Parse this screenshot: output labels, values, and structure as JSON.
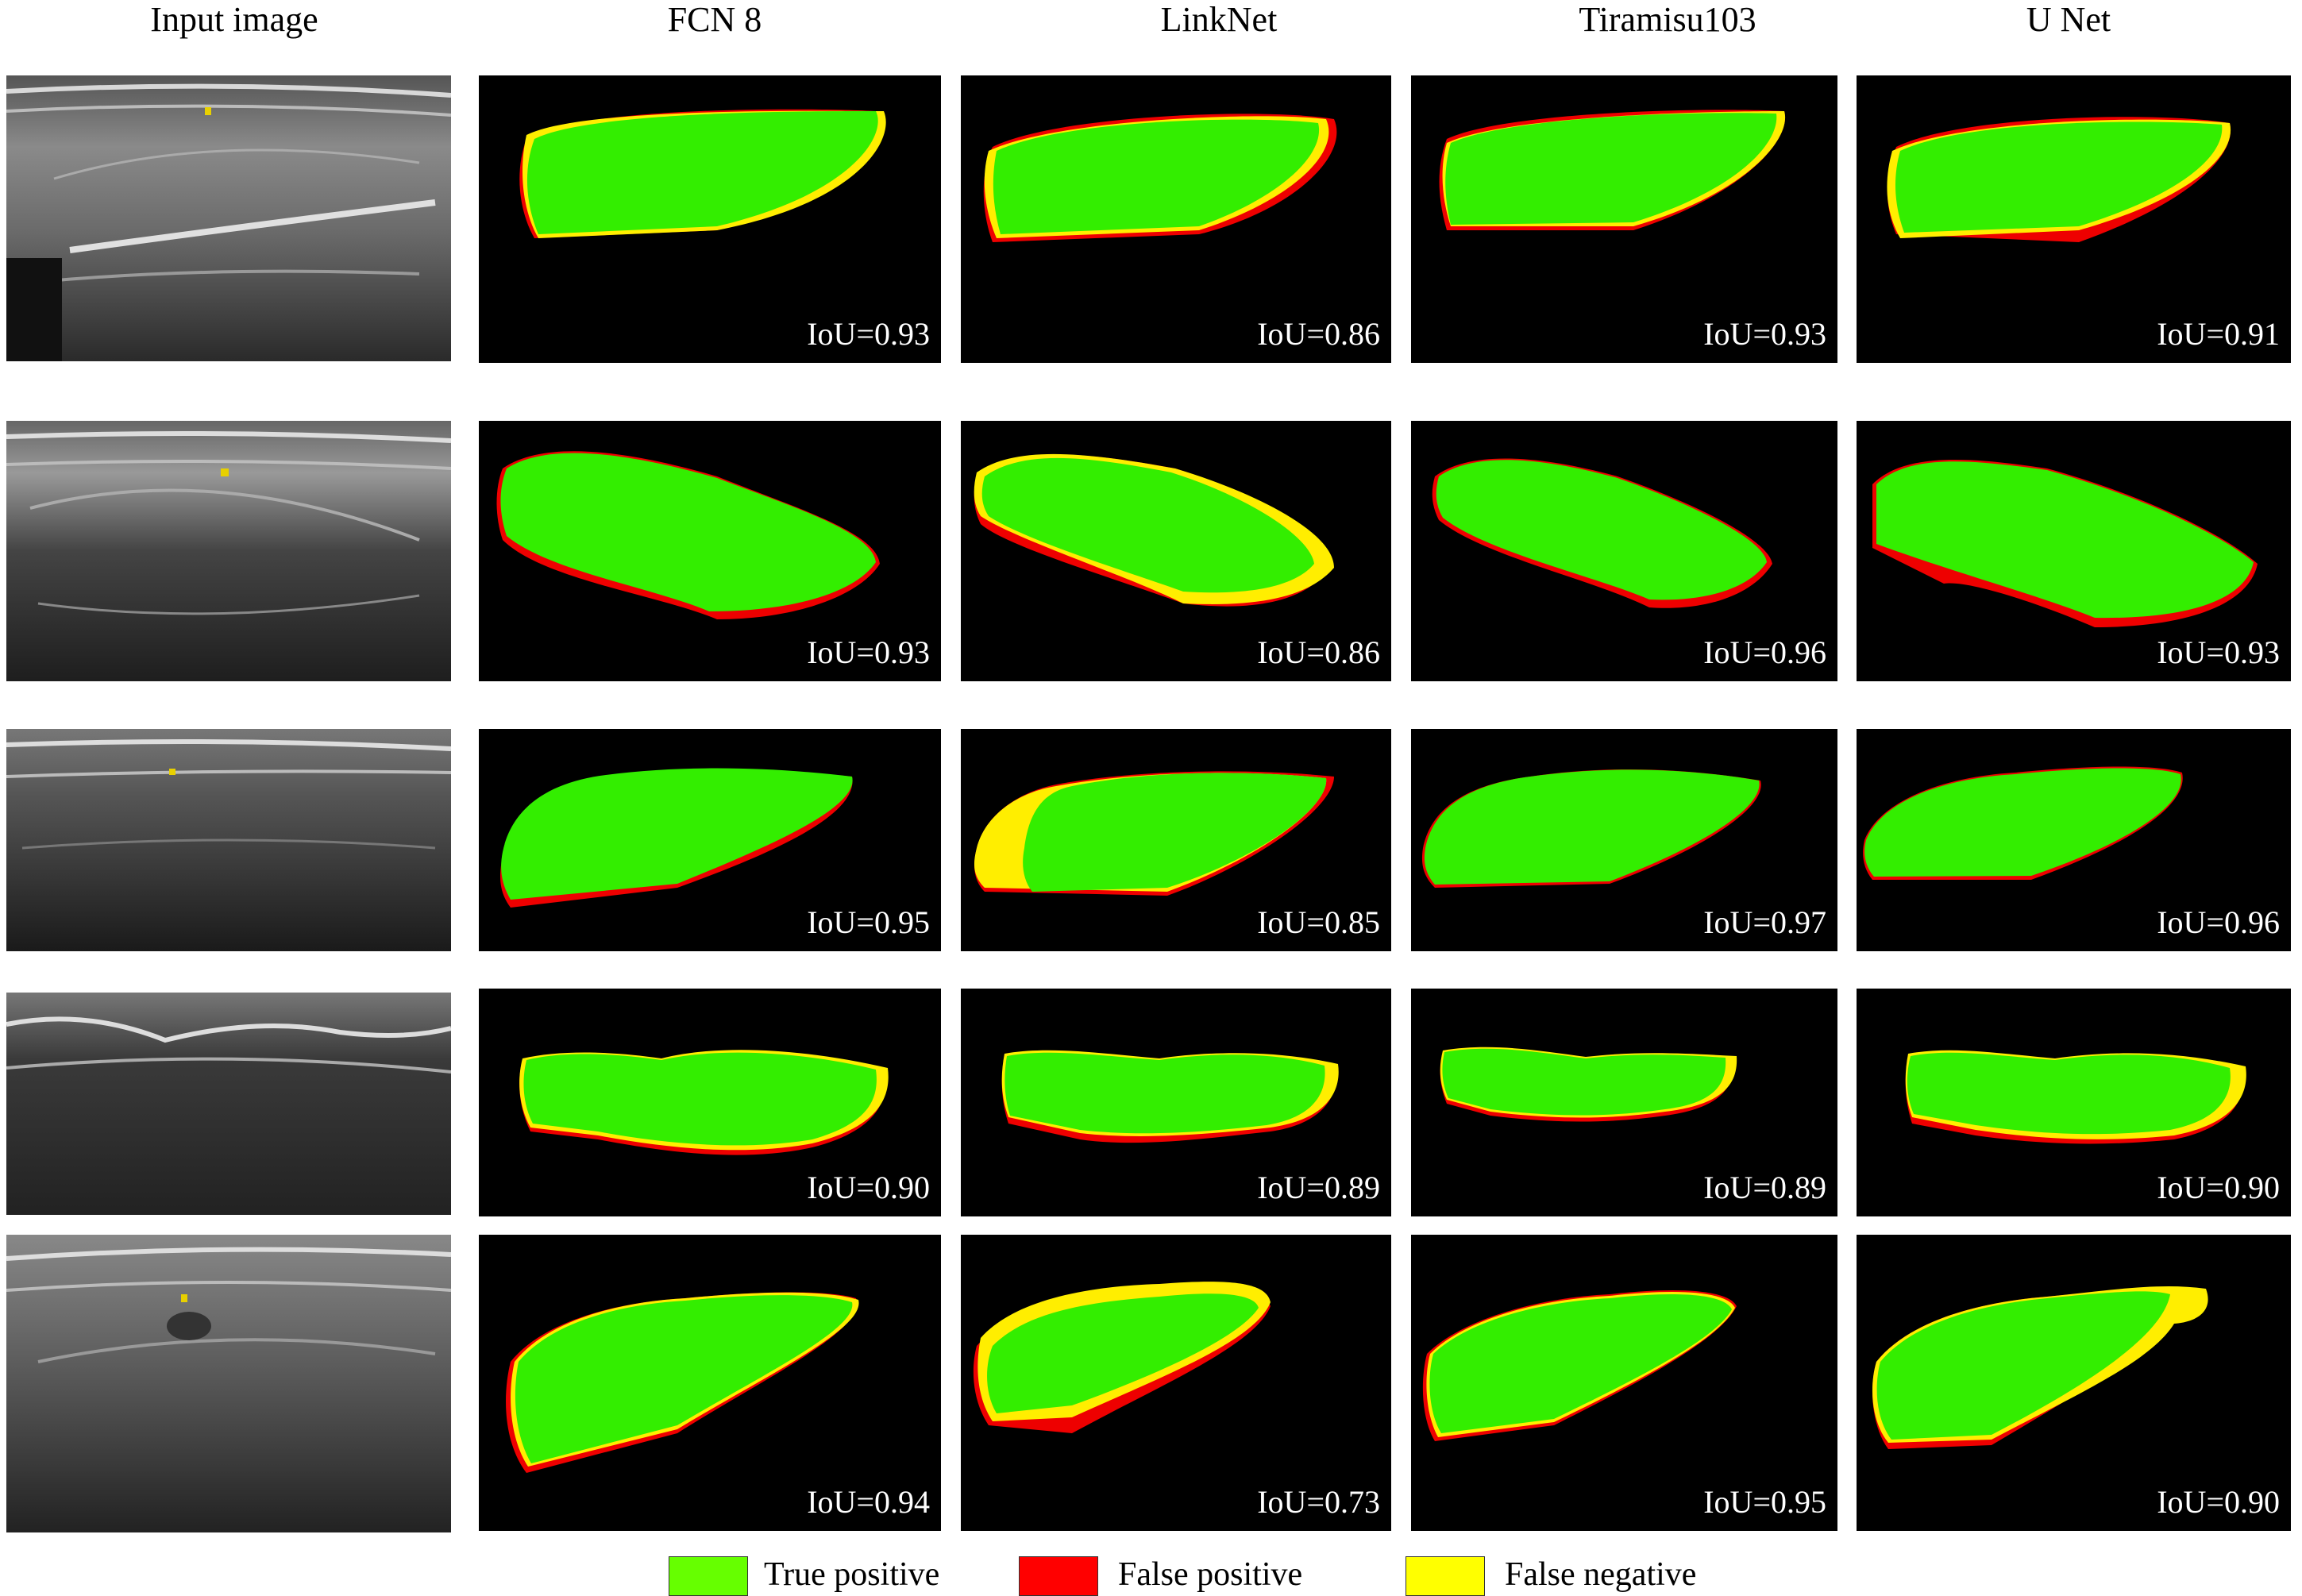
{
  "figure": {
    "columns": [
      "Input image",
      "FCN 8",
      "LinkNet",
      "Tiramisu103",
      "U Net"
    ],
    "rows": [
      {
        "iou": [
          "IoU=0.93",
          "IoU=0.86",
          "IoU=0.93",
          "IoU=0.91"
        ]
      },
      {
        "iou": [
          "IoU=0.93",
          "IoU=0.86",
          "IoU=0.96",
          "IoU=0.93"
        ]
      },
      {
        "iou": [
          "IoU=0.95",
          "IoU=0.85",
          "IoU=0.97",
          "IoU=0.96"
        ]
      },
      {
        "iou": [
          "IoU=0.90",
          "IoU=0.89",
          "IoU=0.89",
          "IoU=0.90"
        ]
      },
      {
        "iou": [
          "IoU=0.94",
          "IoU=0.73",
          "IoU=0.95",
          "IoU=0.90"
        ]
      }
    ],
    "legend": [
      {
        "label": "True positive",
        "color": "#66ff00"
      },
      {
        "label": "False positive",
        "color": "#ff0000"
      },
      {
        "label": "False negative",
        "color": "#ffff00"
      }
    ],
    "colors": {
      "true_positive": "#33ee00",
      "false_positive": "#ee0000",
      "false_negative": "#ffee00",
      "background": "#000000"
    }
  }
}
